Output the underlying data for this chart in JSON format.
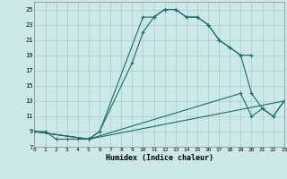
{
  "xlabel": "Humidex (Indice chaleur)",
  "bg_color": "#cce8e8",
  "grid_color": "#aacccc",
  "line_color": "#1a6b6b",
  "line1_x": [
    0,
    1,
    2,
    3,
    4,
    5,
    6,
    10,
    11,
    12,
    13,
    14,
    15,
    16,
    17,
    18,
    19,
    20
  ],
  "line1_y": [
    9,
    9,
    8,
    8,
    8,
    8,
    9,
    24,
    24,
    25,
    25,
    24,
    24,
    23,
    21,
    20,
    19,
    19
  ],
  "line2_x": [
    0,
    5,
    6,
    9,
    10,
    11,
    12,
    13,
    14,
    15,
    16,
    17,
    18,
    19,
    20,
    21,
    22,
    23
  ],
  "line2_y": [
    9,
    8,
    9,
    18,
    22,
    24,
    25,
    25,
    24,
    24,
    23,
    21,
    20,
    19,
    14,
    12,
    11,
    13
  ],
  "line3_x": [
    0,
    5,
    19,
    20,
    21,
    22,
    23
  ],
  "line3_y": [
    9,
    8,
    14,
    11,
    12,
    11,
    13
  ],
  "line4_x": [
    0,
    5,
    23
  ],
  "line4_y": [
    9,
    8,
    13
  ],
  "xlim": [
    0,
    23
  ],
  "ylim": [
    7,
    26
  ],
  "xticks": [
    0,
    1,
    2,
    3,
    4,
    5,
    6,
    7,
    8,
    9,
    10,
    11,
    12,
    13,
    14,
    15,
    16,
    17,
    18,
    19,
    20,
    21,
    22,
    23
  ],
  "yticks": [
    7,
    9,
    11,
    13,
    15,
    17,
    19,
    21,
    23,
    25
  ]
}
